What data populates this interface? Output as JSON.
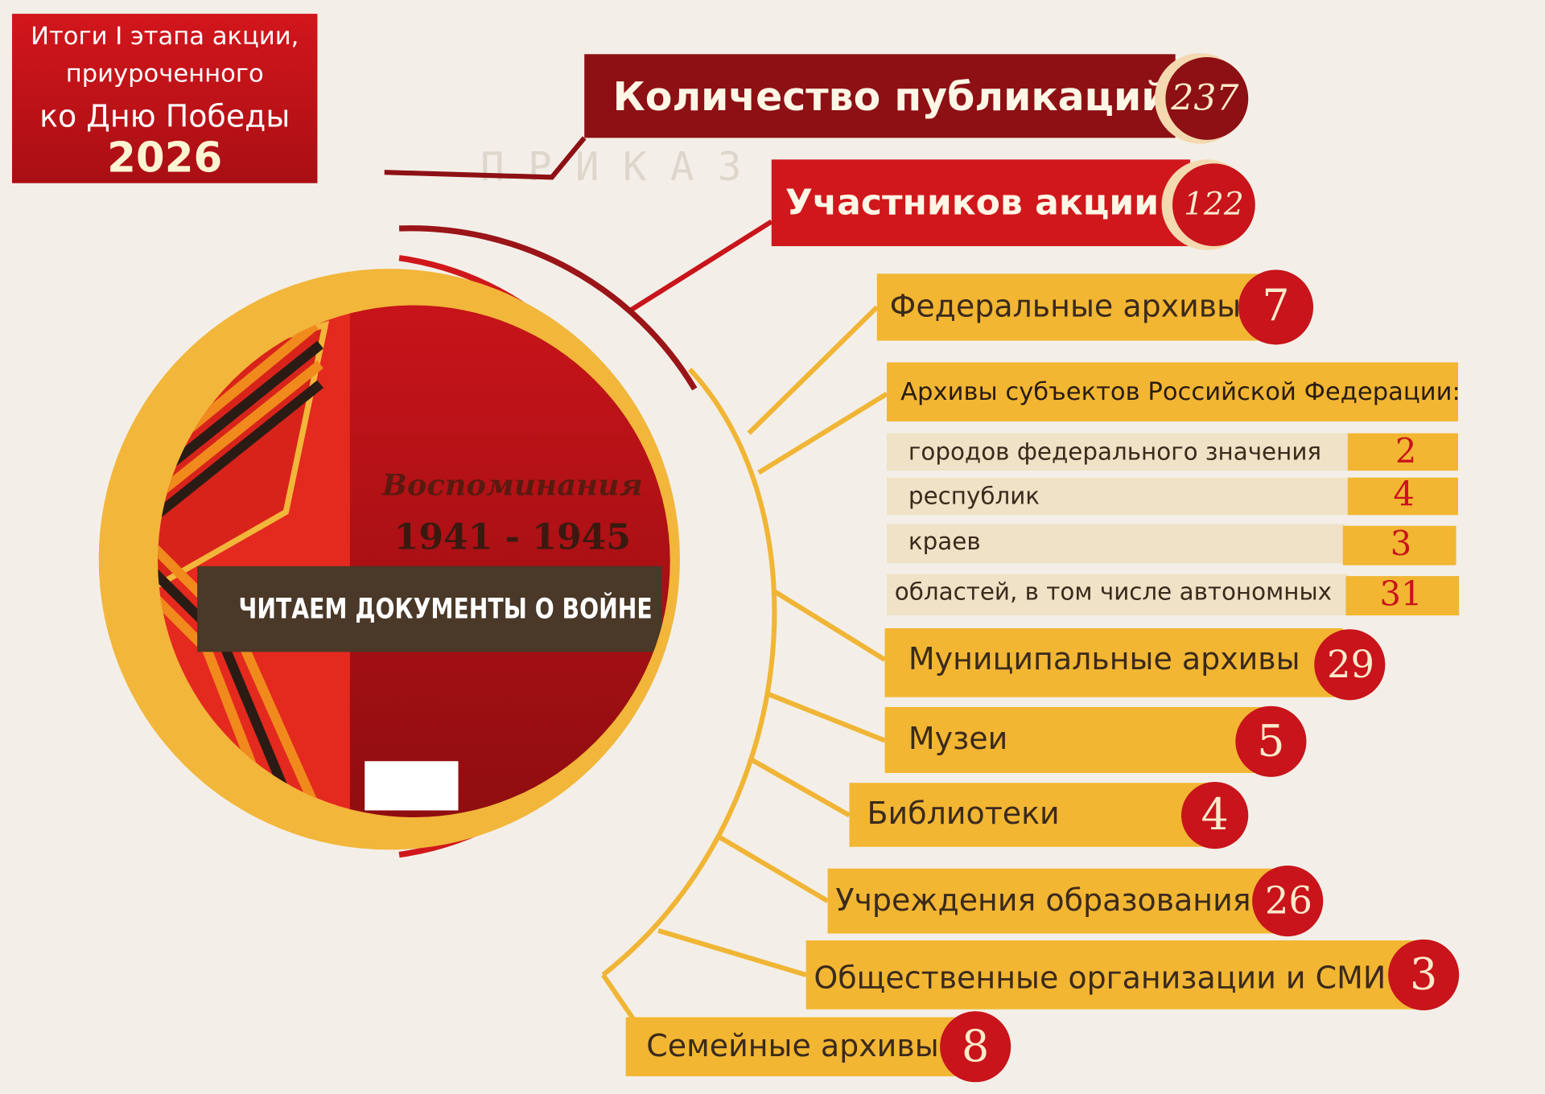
{
  "header": {
    "lines": [
      "Итоги I этапа акции,",
      "приуроченного",
      "ко Дню Победы"
    ],
    "year": "2026"
  },
  "background": {
    "heading": "П Р И К А З"
  },
  "cover": {
    "title": "Воспоминания",
    "years": "1941 - 1945",
    "slogan": "ЧИТАЕМ ДОКУМЕНТЫ О ВОЙНЕ"
  },
  "stats": [
    {
      "label": "Количество публикаций",
      "value": 237
    },
    {
      "label": "Участников акции",
      "value": 122
    },
    {
      "label": "Федеральные архивы",
      "value": 7
    },
    {
      "label": "Муниципальные архивы",
      "value": 29
    },
    {
      "label": "Музеи",
      "value": 5
    },
    {
      "label": "Библиотеки",
      "value": 4
    },
    {
      "label": "Учреждения образования",
      "value": 26
    },
    {
      "label": "Общественные организации и СМИ",
      "value": 3
    },
    {
      "label": "Семейные архивы",
      "value": 8
    }
  ],
  "regional": {
    "title": "Архивы субъектов Российской Федерации:",
    "rows": [
      {
        "label": "городов федерального значения",
        "value": 2
      },
      {
        "label": "республик",
        "value": 4
      },
      {
        "label": "краев",
        "value": 3
      },
      {
        "label": "областей, в том числе автономных",
        "value": 31
      }
    ]
  }
}
